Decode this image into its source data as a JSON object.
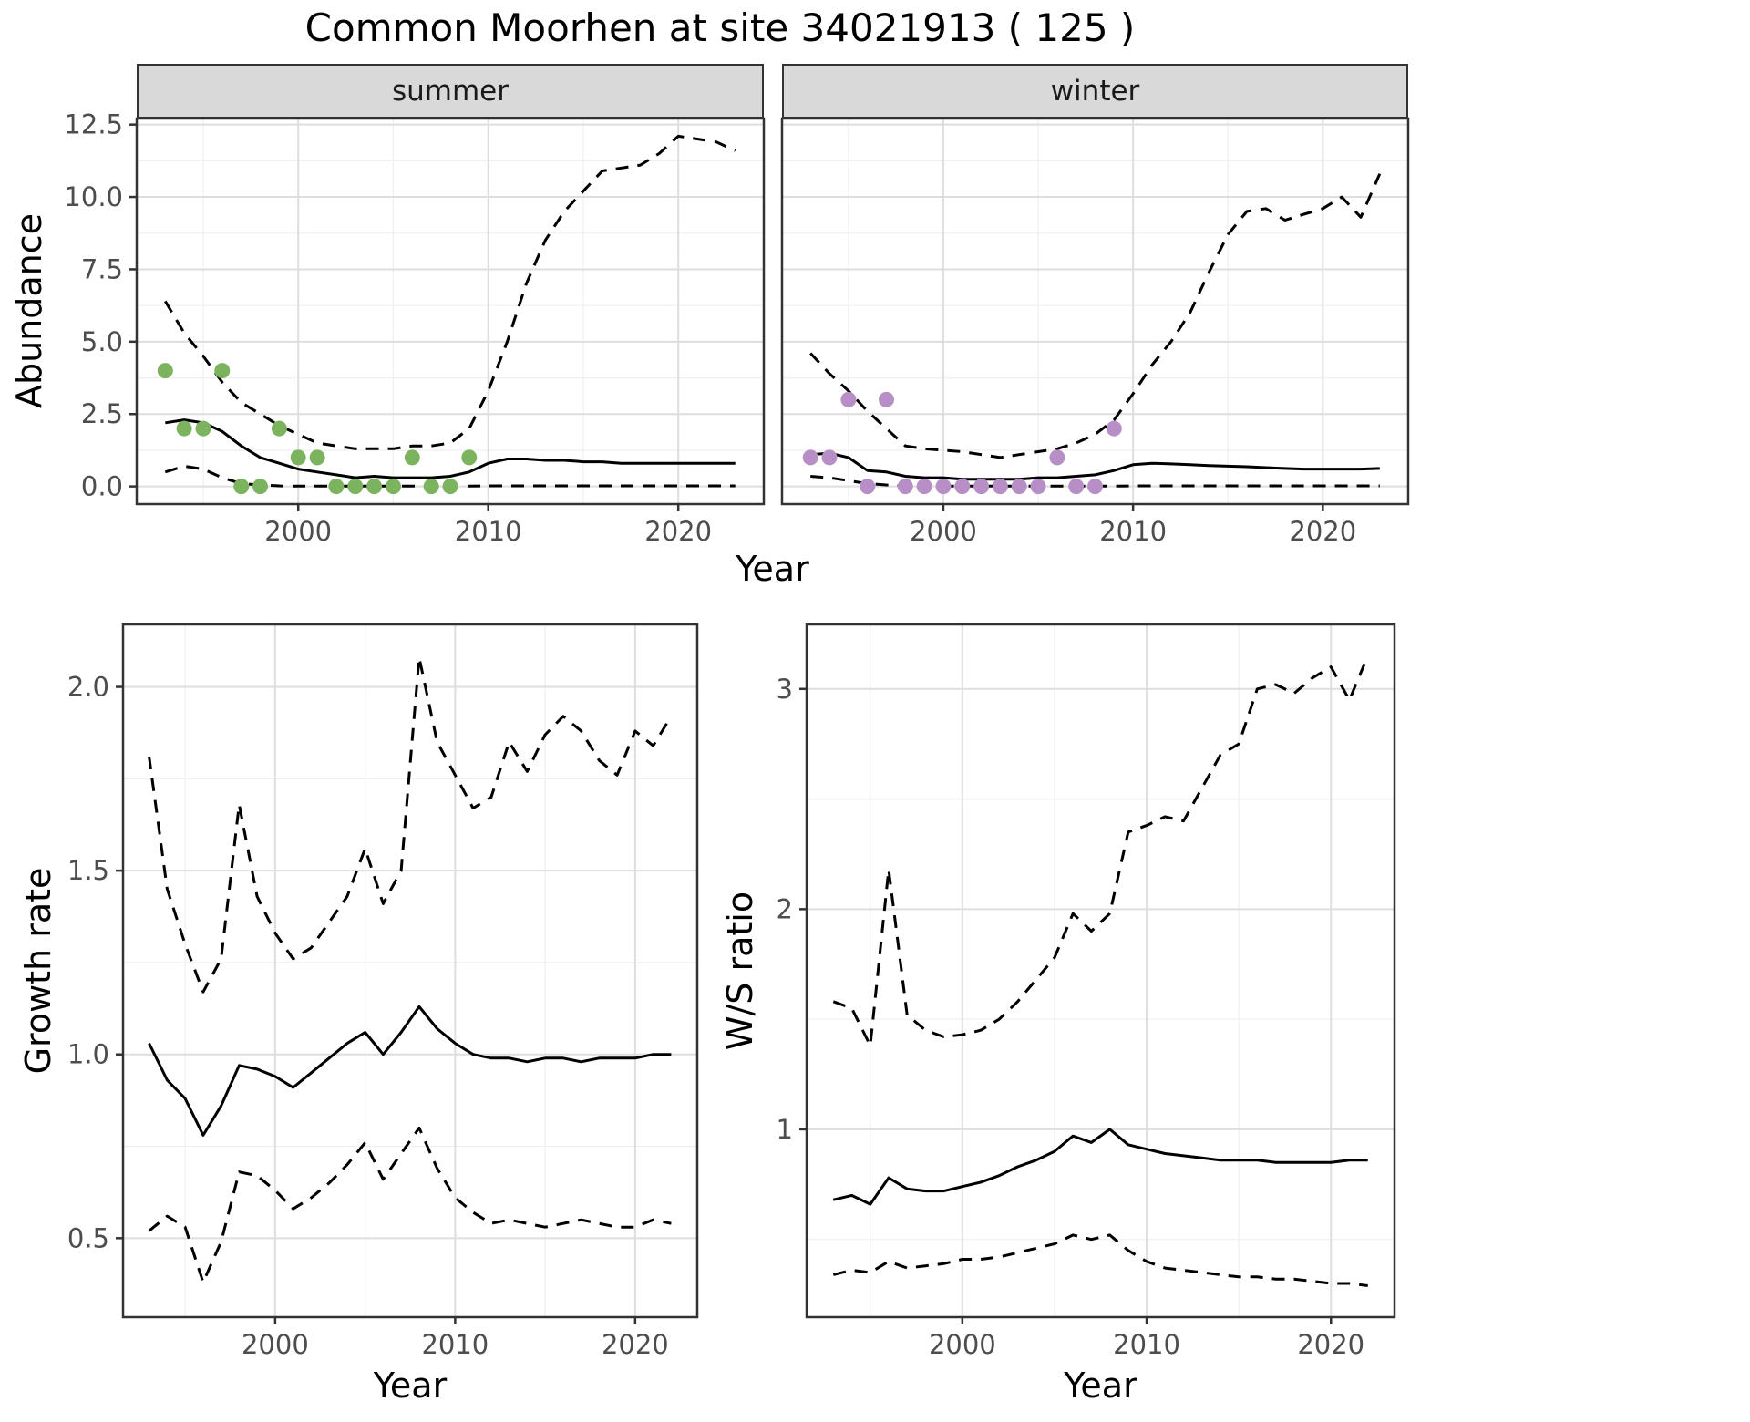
{
  "title": "Common Moorhen at site 34021913 ( 125 )",
  "labels": {
    "year": "Year",
    "abundance": "Abundance",
    "growth_rate": "Growth rate",
    "ws_ratio": "W/S ratio"
  },
  "facets": {
    "summer": "summer",
    "winter": "winter"
  },
  "colors": {
    "summer_points": "#7cb35e",
    "winter_points": "#b78fc6",
    "fit_line": "#000000",
    "ci_line": "#000000",
    "strip_bg": "#d9d9d9",
    "panel_border": "#333333",
    "grid_major": "#dedede",
    "grid_minor": "#f0f0f0",
    "tick_text": "#4d4d4d"
  },
  "chart_data": [
    {
      "id": "abundance-summer",
      "type": "line",
      "facet": "summer",
      "xlabel": "Year",
      "ylabel": "Abundance",
      "xlim": [
        1991.5,
        2024.5
      ],
      "ylim": [
        -0.61,
        12.71
      ],
      "xticks": [
        2000,
        2010,
        2020
      ],
      "xtick_labels": [
        "2000",
        "2010",
        "2020"
      ],
      "yticks": [
        0,
        2.5,
        5,
        7.5,
        10,
        12.5
      ],
      "ytick_labels": [
        "0.0",
        "2.5",
        "5.0",
        "7.5",
        "10.0",
        "12.5"
      ],
      "xminor": [
        1995,
        2005,
        2015
      ],
      "yminor": [
        1.25,
        3.75,
        6.25,
        8.75,
        11.25
      ],
      "years": [
        1993,
        1994,
        1995,
        1996,
        1997,
        1998,
        1999,
        2000,
        2001,
        2002,
        2003,
        2004,
        2005,
        2006,
        2007,
        2008,
        2009,
        2010,
        2011,
        2012,
        2013,
        2014,
        2015,
        2016,
        2017,
        2018,
        2019,
        2020,
        2021,
        2022,
        2023
      ],
      "series": [
        {
          "name": "median_fit",
          "style": "solid",
          "values": [
            2.2,
            2.3,
            2.2,
            1.9,
            1.4,
            1.0,
            0.8,
            0.6,
            0.5,
            0.4,
            0.3,
            0.35,
            0.3,
            0.3,
            0.3,
            0.35,
            0.5,
            0.8,
            0.95,
            0.95,
            0.9,
            0.9,
            0.85,
            0.85,
            0.8,
            0.8,
            0.8,
            0.8,
            0.8,
            0.8,
            0.8
          ]
        },
        {
          "name": "upper_ci",
          "style": "dashed",
          "values": [
            6.4,
            5.3,
            4.5,
            3.6,
            2.9,
            2.5,
            2.1,
            1.8,
            1.5,
            1.4,
            1.3,
            1.3,
            1.3,
            1.4,
            1.4,
            1.5,
            2.0,
            3.3,
            5.0,
            7.0,
            8.5,
            9.5,
            10.2,
            10.9,
            11.0,
            11.1,
            11.5,
            12.1,
            12.0,
            11.9,
            11.6
          ]
        },
        {
          "name": "lower_ci",
          "style": "dashed",
          "values": [
            0.5,
            0.7,
            0.6,
            0.3,
            0.1,
            0.05,
            0.02,
            0.01,
            0.01,
            0.01,
            0.01,
            0.01,
            0.01,
            0.01,
            0.01,
            0.01,
            0.01,
            0.02,
            0.02,
            0.02,
            0.02,
            0.02,
            0.02,
            0.02,
            0.02,
            0.02,
            0.02,
            0.02,
            0.02,
            0.02,
            0.02
          ]
        }
      ],
      "points": {
        "name": "observed-counts-summer",
        "color": "summer_points",
        "years": [
          1993,
          1994,
          1995,
          1996,
          1997,
          1998,
          1999,
          2000,
          2001,
          2002,
          2003,
          2004,
          2005,
          2006,
          2007,
          2008,
          2009
        ],
        "values": [
          4,
          2,
          2,
          4,
          0,
          0,
          2,
          1,
          1,
          0,
          0,
          0,
          0,
          1,
          0,
          0,
          1
        ]
      }
    },
    {
      "id": "abundance-winter",
      "type": "line",
      "facet": "winter",
      "xlabel": "Year",
      "ylabel": "Abundance",
      "xlim": [
        1991.5,
        2024.5
      ],
      "ylim": [
        -0.61,
        12.71
      ],
      "xticks": [
        2000,
        2010,
        2020
      ],
      "xtick_labels": [
        "2000",
        "2010",
        "2020"
      ],
      "yticks": [
        0,
        2.5,
        5,
        7.5,
        10,
        12.5
      ],
      "ytick_labels": [
        "0.0",
        "2.5",
        "5.0",
        "7.5",
        "10.0",
        "12.5"
      ],
      "xminor": [
        1995,
        2005,
        2015
      ],
      "yminor": [
        1.25,
        3.75,
        6.25,
        8.75,
        11.25
      ],
      "years": [
        1993,
        1994,
        1995,
        1996,
        1997,
        1998,
        1999,
        2000,
        2001,
        2002,
        2003,
        2004,
        2005,
        2006,
        2007,
        2008,
        2009,
        2010,
        2011,
        2012,
        2013,
        2014,
        2015,
        2016,
        2017,
        2018,
        2019,
        2020,
        2021,
        2022,
        2023
      ],
      "series": [
        {
          "name": "median_fit",
          "style": "solid",
          "values": [
            1.1,
            1.15,
            1.0,
            0.55,
            0.5,
            0.35,
            0.3,
            0.3,
            0.25,
            0.25,
            0.25,
            0.25,
            0.3,
            0.3,
            0.35,
            0.4,
            0.55,
            0.75,
            0.8,
            0.78,
            0.75,
            0.72,
            0.7,
            0.68,
            0.65,
            0.62,
            0.6,
            0.6,
            0.6,
            0.6,
            0.62
          ]
        },
        {
          "name": "upper_ci",
          "style": "dashed",
          "values": [
            4.6,
            3.9,
            3.3,
            2.6,
            2.0,
            1.4,
            1.3,
            1.25,
            1.2,
            1.1,
            1.0,
            1.1,
            1.2,
            1.3,
            1.5,
            1.8,
            2.3,
            3.2,
            4.2,
            5.0,
            6.0,
            7.4,
            8.7,
            9.5,
            9.6,
            9.2,
            9.4,
            9.6,
            10.0,
            9.3,
            10.8
          ]
        },
        {
          "name": "lower_ci",
          "style": "dashed",
          "values": [
            0.35,
            0.3,
            0.2,
            0.1,
            0.05,
            0.02,
            0.01,
            0.01,
            0.01,
            0.01,
            0.01,
            0.01,
            0.01,
            0.01,
            0.01,
            0.01,
            0.01,
            0.02,
            0.02,
            0.02,
            0.02,
            0.02,
            0.02,
            0.02,
            0.02,
            0.02,
            0.02,
            0.02,
            0.02,
            0.02,
            0.02
          ]
        }
      ],
      "points": {
        "name": "observed-counts-winter",
        "color": "winter_points",
        "years": [
          1993,
          1994,
          1995,
          1996,
          1997,
          1998,
          1999,
          2000,
          2001,
          2002,
          2003,
          2004,
          2005,
          2006,
          2007,
          2008,
          2009
        ],
        "values": [
          1,
          1,
          3,
          0,
          3,
          0,
          0,
          0,
          0,
          0,
          0,
          0,
          0,
          1,
          0,
          0,
          2
        ]
      }
    },
    {
      "id": "growth-rate",
      "type": "line",
      "facet": null,
      "xlabel": "Year",
      "ylabel": "Growth rate",
      "xlim": [
        1991.55,
        2023.45
      ],
      "ylim": [
        0.285,
        2.17
      ],
      "xticks": [
        2000,
        2010,
        2020
      ],
      "xtick_labels": [
        "2000",
        "2010",
        "2020"
      ],
      "yticks": [
        0.5,
        1.0,
        1.5,
        2.0
      ],
      "ytick_labels": [
        "0.5",
        "1.0",
        "1.5",
        "2.0"
      ],
      "xminor": [
        1995,
        2005,
        2015
      ],
      "yminor": [
        0.75,
        1.25,
        1.75
      ],
      "years": [
        1993,
        1994,
        1995,
        1996,
        1997,
        1998,
        1999,
        2000,
        2001,
        2002,
        2003,
        2004,
        2005,
        2006,
        2007,
        2008,
        2009,
        2010,
        2011,
        2012,
        2013,
        2014,
        2015,
        2016,
        2017,
        2018,
        2019,
        2020,
        2021,
        2022
      ],
      "series": [
        {
          "name": "median_fit",
          "style": "solid",
          "values": [
            1.03,
            0.93,
            0.88,
            0.78,
            0.86,
            0.97,
            0.96,
            0.94,
            0.91,
            0.95,
            0.99,
            1.03,
            1.06,
            1.0,
            1.06,
            1.13,
            1.07,
            1.03,
            1.0,
            0.99,
            0.99,
            0.98,
            0.99,
            0.99,
            0.98,
            0.99,
            0.99,
            0.99,
            1.0,
            1.0
          ]
        },
        {
          "name": "upper_ci",
          "style": "dashed",
          "values": [
            1.81,
            1.45,
            1.3,
            1.17,
            1.26,
            1.68,
            1.43,
            1.33,
            1.26,
            1.29,
            1.36,
            1.43,
            1.56,
            1.41,
            1.5,
            2.08,
            1.85,
            1.76,
            1.67,
            1.7,
            1.85,
            1.77,
            1.87,
            1.92,
            1.88,
            1.8,
            1.76,
            1.88,
            1.84,
            1.92
          ]
        },
        {
          "name": "lower_ci",
          "style": "dashed",
          "values": [
            0.52,
            0.56,
            0.53,
            0.38,
            0.49,
            0.68,
            0.67,
            0.63,
            0.58,
            0.61,
            0.65,
            0.7,
            0.76,
            0.66,
            0.73,
            0.8,
            0.69,
            0.61,
            0.57,
            0.54,
            0.55,
            0.54,
            0.53,
            0.54,
            0.55,
            0.54,
            0.53,
            0.53,
            0.55,
            0.54
          ]
        }
      ],
      "points": null
    },
    {
      "id": "ws-ratio",
      "type": "line",
      "facet": null,
      "xlabel": "Year",
      "ylabel": "W/S ratio",
      "xlim": [
        1991.55,
        2023.45
      ],
      "ylim": [
        0.147,
        3.293
      ],
      "xticks": [
        2000,
        2010,
        2020
      ],
      "xtick_labels": [
        "2000",
        "2010",
        "2020"
      ],
      "yticks": [
        1,
        2,
        3
      ],
      "ytick_labels": [
        "1",
        "2",
        "3"
      ],
      "xminor": [
        1995,
        2005,
        2015
      ],
      "yminor": [
        0.5,
        1.5,
        2.5
      ],
      "years": [
        1993,
        1994,
        1995,
        1996,
        1997,
        1998,
        1999,
        2000,
        2001,
        2002,
        2003,
        2004,
        2005,
        2006,
        2007,
        2008,
        2009,
        2010,
        2011,
        2012,
        2013,
        2014,
        2015,
        2016,
        2017,
        2018,
        2019,
        2020,
        2021,
        2022
      ],
      "series": [
        {
          "name": "median_fit",
          "style": "solid",
          "values": [
            0.68,
            0.7,
            0.66,
            0.78,
            0.73,
            0.72,
            0.72,
            0.74,
            0.76,
            0.79,
            0.83,
            0.86,
            0.9,
            0.97,
            0.94,
            1.0,
            0.93,
            0.91,
            0.89,
            0.88,
            0.87,
            0.86,
            0.86,
            0.86,
            0.85,
            0.85,
            0.85,
            0.85,
            0.86,
            0.86
          ]
        },
        {
          "name": "upper_ci",
          "style": "dashed",
          "values": [
            1.58,
            1.55,
            1.38,
            2.18,
            1.52,
            1.45,
            1.42,
            1.43,
            1.45,
            1.5,
            1.58,
            1.68,
            1.78,
            1.98,
            1.9,
            1.98,
            2.35,
            2.38,
            2.42,
            2.4,
            2.55,
            2.7,
            2.75,
            3.0,
            3.02,
            2.98,
            3.05,
            3.1,
            2.95,
            3.15
          ]
        },
        {
          "name": "lower_ci",
          "style": "dashed",
          "values": [
            0.34,
            0.36,
            0.35,
            0.4,
            0.37,
            0.38,
            0.39,
            0.41,
            0.41,
            0.42,
            0.44,
            0.46,
            0.48,
            0.52,
            0.5,
            0.52,
            0.45,
            0.4,
            0.37,
            0.36,
            0.35,
            0.34,
            0.33,
            0.33,
            0.32,
            0.32,
            0.31,
            0.3,
            0.3,
            0.29
          ]
        }
      ],
      "points": null
    }
  ]
}
